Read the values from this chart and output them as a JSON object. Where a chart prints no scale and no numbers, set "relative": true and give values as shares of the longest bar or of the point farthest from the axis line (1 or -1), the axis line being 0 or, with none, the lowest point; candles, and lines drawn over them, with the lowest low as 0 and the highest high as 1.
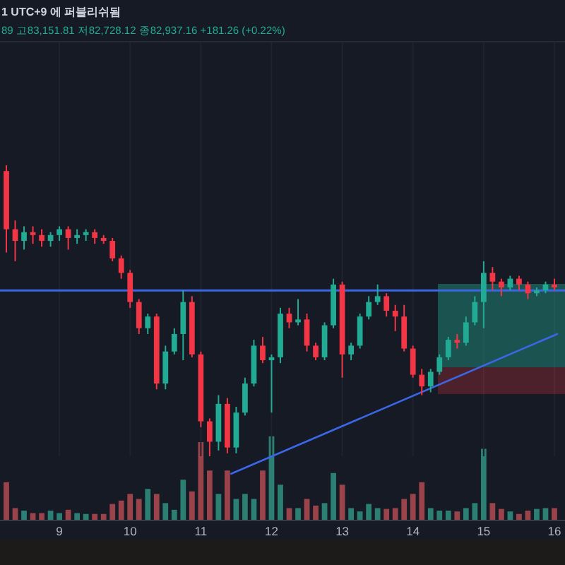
{
  "chart_data": [
    {
      "type": "candlestick",
      "relative": true,
      "x": [
        8.25,
        8.375,
        8.5,
        8.625,
        8.75,
        8.875,
        9,
        9.125,
        9.25,
        9.375,
        9.5,
        9.625,
        9.75,
        9.875,
        10,
        10.125,
        10.25,
        10.375,
        10.5,
        10.625,
        10.75,
        10.875,
        11,
        11.125,
        11.25,
        11.375,
        11.5,
        11.625,
        11.75,
        11.875,
        12,
        12.125,
        12.25,
        12.375,
        12.5,
        12.625,
        12.75,
        12.875,
        13,
        13.125,
        13.25,
        13.375,
        13.5,
        13.625,
        13.75,
        13.875,
        14,
        14.125,
        14.25,
        14.375,
        14.5,
        14.625,
        14.75,
        14.875,
        15,
        15.125,
        15.25,
        15.375,
        15.5,
        15.625,
        15.75,
        15.875,
        16
      ],
      "ohlc": [
        [
          0.98,
          1,
          0.7,
          0.78
        ],
        [
          0.78,
          0.81,
          0.67,
          0.74
        ],
        [
          0.74,
          0.79,
          0.71,
          0.77
        ],
        [
          0.77,
          0.79,
          0.73,
          0.76
        ],
        [
          0.76,
          0.78,
          0.72,
          0.74
        ],
        [
          0.74,
          0.77,
          0.72,
          0.76
        ],
        [
          0.76,
          0.79,
          0.74,
          0.78
        ],
        [
          0.78,
          0.79,
          0.71,
          0.75
        ],
        [
          0.75,
          0.78,
          0.73,
          0.76
        ],
        [
          0.76,
          0.78,
          0.74,
          0.77
        ],
        [
          0.77,
          0.78,
          0.73,
          0.75
        ],
        [
          0.75,
          0.76,
          0.73,
          0.74
        ],
        [
          0.74,
          0.75,
          0.67,
          0.68
        ],
        [
          0.68,
          0.69,
          0.61,
          0.63
        ],
        [
          0.63,
          0.64,
          0.51,
          0.53
        ],
        [
          0.53,
          0.54,
          0.42,
          0.44
        ],
        [
          0.44,
          0.49,
          0.42,
          0.48
        ],
        [
          0.48,
          0.49,
          0.23,
          0.25
        ],
        [
          0.25,
          0.38,
          0.23,
          0.36
        ],
        [
          0.36,
          0.44,
          0.35,
          0.42
        ],
        [
          0.42,
          0.57,
          0.33,
          0.53
        ],
        [
          0.53,
          0.55,
          0.34,
          0.35
        ],
        [
          0.35,
          0.36,
          0.1,
          0.12
        ],
        [
          0.12,
          0.13,
          0,
          0.05
        ],
        [
          0.05,
          0.21,
          0.02,
          0.18
        ],
        [
          0.18,
          0.2,
          0.01,
          0.03
        ],
        [
          0.03,
          0.17,
          0.01,
          0.15
        ],
        [
          0.15,
          0.27,
          0.14,
          0.25
        ],
        [
          0.25,
          0.4,
          0.24,
          0.38
        ],
        [
          0.38,
          0.41,
          0.32,
          0.33
        ],
        [
          0.33,
          0.35,
          0.15,
          0.34
        ],
        [
          0.34,
          0.51,
          0.32,
          0.49
        ],
        [
          0.49,
          0.51,
          0.44,
          0.46
        ],
        [
          0.46,
          0.54,
          0.45,
          0.47
        ],
        [
          0.47,
          0.49,
          0.36,
          0.38
        ],
        [
          0.38,
          0.39,
          0.33,
          0.34
        ],
        [
          0.34,
          0.46,
          0.33,
          0.45
        ],
        [
          0.45,
          0.61,
          0.44,
          0.59
        ],
        [
          0.59,
          0.6,
          0.27,
          0.35
        ],
        [
          0.35,
          0.39,
          0.33,
          0.38
        ],
        [
          0.38,
          0.49,
          0.37,
          0.48
        ],
        [
          0.48,
          0.55,
          0.47,
          0.53
        ],
        [
          0.53,
          0.59,
          0.52,
          0.55
        ],
        [
          0.55,
          0.56,
          0.48,
          0.5
        ],
        [
          0.5,
          0.52,
          0.43,
          0.48
        ],
        [
          0.48,
          0.52,
          0.36,
          0.37
        ],
        [
          0.37,
          0.38,
          0.27,
          0.28
        ],
        [
          0.28,
          0.3,
          0.21,
          0.24
        ],
        [
          0.24,
          0.3,
          0.22,
          0.29
        ],
        [
          0.29,
          0.35,
          0.28,
          0.34
        ],
        [
          0.34,
          0.41,
          0.33,
          0.4
        ],
        [
          0.4,
          0.42,
          0.37,
          0.39
        ],
        [
          0.39,
          0.48,
          0.38,
          0.46
        ],
        [
          0.46,
          0.55,
          0.45,
          0.53
        ],
        [
          0.53,
          0.67,
          0.44,
          0.63
        ],
        [
          0.63,
          0.65,
          0.57,
          0.6
        ],
        [
          0.6,
          0.61,
          0.55,
          0.58
        ],
        [
          0.58,
          0.62,
          0.57,
          0.61
        ],
        [
          0.61,
          0.62,
          0.57,
          0.59
        ],
        [
          0.59,
          0.6,
          0.54,
          0.56
        ],
        [
          0.56,
          0.58,
          0.55,
          0.57
        ],
        [
          0.57,
          0.6,
          0.56,
          0.59
        ],
        [
          0.59,
          0.61,
          0.57,
          0.58
        ]
      ],
      "colors": [
        "#f23645",
        "#f23645",
        "#22ab94",
        "#f23645",
        "#f23645",
        "#22ab94",
        "#22ab94",
        "#f23645",
        "#22ab94",
        "#22ab94",
        "#f23645",
        "#f23645",
        "#f23645",
        "#f23645",
        "#f23645",
        "#f23645",
        "#22ab94",
        "#f23645",
        "#22ab94",
        "#22ab94",
        "#22ab94",
        "#f23645",
        "#f23645",
        "#f23645",
        "#22ab94",
        "#f23645",
        "#22ab94",
        "#22ab94",
        "#22ab94",
        "#f23645",
        "#22ab94",
        "#22ab94",
        "#f23645",
        "#22ab94",
        "#f23645",
        "#f23645",
        "#22ab94",
        "#22ab94",
        "#f23645",
        "#22ab94",
        "#22ab94",
        "#22ab94",
        "#22ab94",
        "#f23645",
        "#f23645",
        "#f23645",
        "#f23645",
        "#f23645",
        "#22ab94",
        "#22ab94",
        "#22ab94",
        "#f23645",
        "#22ab94",
        "#22ab94",
        "#22ab94",
        "#f23645",
        "#f23645",
        "#22ab94",
        "#f23645",
        "#f23645",
        "#22ab94",
        "#22ab94",
        "#f23645"
      ],
      "xlim": [
        8.16,
        16.15
      ],
      "xticks": [
        9,
        10,
        11,
        12,
        13,
        14,
        15,
        16
      ],
      "grid": "x",
      "tick_labels": "x",
      "annotations": [
        "1 UTC+9 에 퍼블리쉬됨",
        "89 고83,151.81 저82,728.12 종82,937.16 +181.26 (+0.22%)"
      ],
      "ref_lines": [
        {
          "axis": "y",
          "value": 0.57,
          "color": "#3b66e6"
        }
      ],
      "series": [
        {
          "type": "line",
          "x": [
            11.43,
            16.04
          ],
          "values": [
            -0.06,
            0.42
          ],
          "color": "#3b66e6"
        }
      ]
    },
    {
      "type": "bar",
      "relative": true,
      "x": [
        8.25,
        8.375,
        8.5,
        8.625,
        8.75,
        8.875,
        9,
        9.125,
        9.25,
        9.375,
        9.5,
        9.625,
        9.75,
        9.875,
        10,
        10.125,
        10.25,
        10.375,
        10.5,
        10.625,
        10.75,
        10.875,
        11,
        11.125,
        11.25,
        11.375,
        11.5,
        11.625,
        11.75,
        11.875,
        12,
        12.125,
        12.25,
        12.375,
        12.5,
        12.625,
        12.75,
        12.875,
        13,
        13.125,
        13.25,
        13.375,
        13.5,
        13.625,
        13.75,
        13.875,
        14,
        14.125,
        14.25,
        14.375,
        14.5,
        14.625,
        14.75,
        14.875,
        15,
        15.125,
        15.25,
        15.375,
        15.5,
        15.625,
        15.75,
        15.875,
        16
      ],
      "values": [
        0.45,
        0.14,
        0.11,
        0.08,
        0.08,
        0.11,
        0.08,
        0.12,
        0.08,
        0.07,
        0.07,
        0.07,
        0.19,
        0.23,
        0.31,
        0.25,
        0.37,
        0.31,
        0.2,
        0.12,
        0.48,
        0.34,
        0.93,
        0.59,
        0.31,
        0.59,
        0.25,
        0.31,
        0.25,
        0.59,
        1,
        0.42,
        0.14,
        0.14,
        0.25,
        0.17,
        0.2,
        0.56,
        0.42,
        0.14,
        0.1,
        0.19,
        0.14,
        0.13,
        0.14,
        0.25,
        0.31,
        0.45,
        0.14,
        0.11,
        0.11,
        0.1,
        0.14,
        0.2,
        0.85,
        0.2,
        0.13,
        0.1,
        0.07,
        0.11,
        0.13,
        0.14,
        0.14
      ],
      "colors": [
        "#9b434b",
        "#9b434b",
        "#2b7f73",
        "#9b434b",
        "#9b434b",
        "#2b7f73",
        "#2b7f73",
        "#9b434b",
        "#2b7f73",
        "#2b7f73",
        "#9b434b",
        "#9b434b",
        "#9b434b",
        "#9b434b",
        "#9b434b",
        "#9b434b",
        "#2b7f73",
        "#9b434b",
        "#2b7f73",
        "#2b7f73",
        "#2b7f73",
        "#9b434b",
        "#9b434b",
        "#9b434b",
        "#2b7f73",
        "#9b434b",
        "#2b7f73",
        "#2b7f73",
        "#2b7f73",
        "#9b434b",
        "#2b7f73",
        "#2b7f73",
        "#9b434b",
        "#2b7f73",
        "#9b434b",
        "#9b434b",
        "#2b7f73",
        "#2b7f73",
        "#9b434b",
        "#2b7f73",
        "#2b7f73",
        "#2b7f73",
        "#2b7f73",
        "#9b434b",
        "#9b434b",
        "#9b434b",
        "#9b434b",
        "#9b434b",
        "#2b7f73",
        "#2b7f73",
        "#2b7f73",
        "#9b434b",
        "#2b7f73",
        "#2b7f73",
        "#2b7f73",
        "#9b434b",
        "#9b434b",
        "#2b7f73",
        "#9b434b",
        "#9b434b",
        "#2b7f73",
        "#2b7f73",
        "#9b434b"
      ],
      "xlim": [
        8.16,
        16.15
      ],
      "tick_labels": false
    }
  ]
}
